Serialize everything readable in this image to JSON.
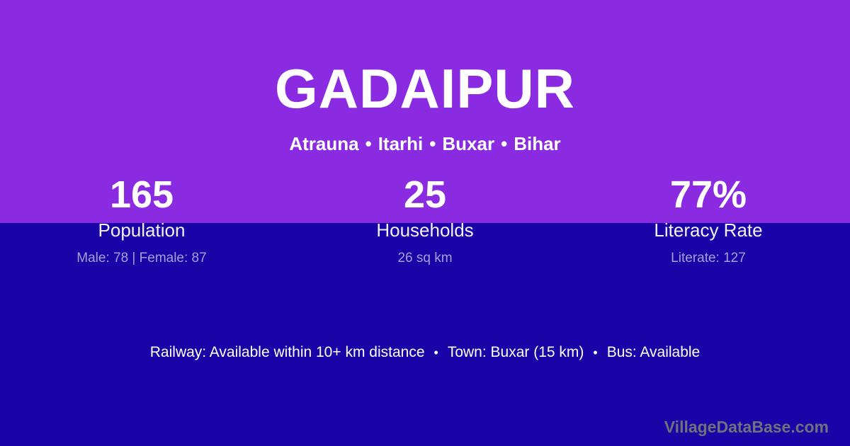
{
  "colors": {
    "top_background": "#8a2be2",
    "bottom_background": "#1a04a8",
    "text_primary": "#ffffff",
    "stat_detail_text": "#a89fd8",
    "watermark_text": "#71717b"
  },
  "header": {
    "village_name": "GADAIPUR",
    "breadcrumb": {
      "parts": [
        "Atrauna",
        "Itarhi",
        "Buxar",
        "Bihar"
      ],
      "separator": "•"
    }
  },
  "stats": [
    {
      "value": "165",
      "label": "Population",
      "detail": "Male: 78 | Female: 87"
    },
    {
      "value": "25",
      "label": "Households",
      "detail": "26 sq km"
    },
    {
      "value": "77%",
      "label": "Literacy Rate",
      "detail": "Literate: 127"
    }
  ],
  "amenities": {
    "items": [
      "Railway: Available within 10+ km distance",
      "Town: Buxar (15 km)",
      "Bus: Available"
    ],
    "separator": "•"
  },
  "watermark": "VillageDataBase.com"
}
